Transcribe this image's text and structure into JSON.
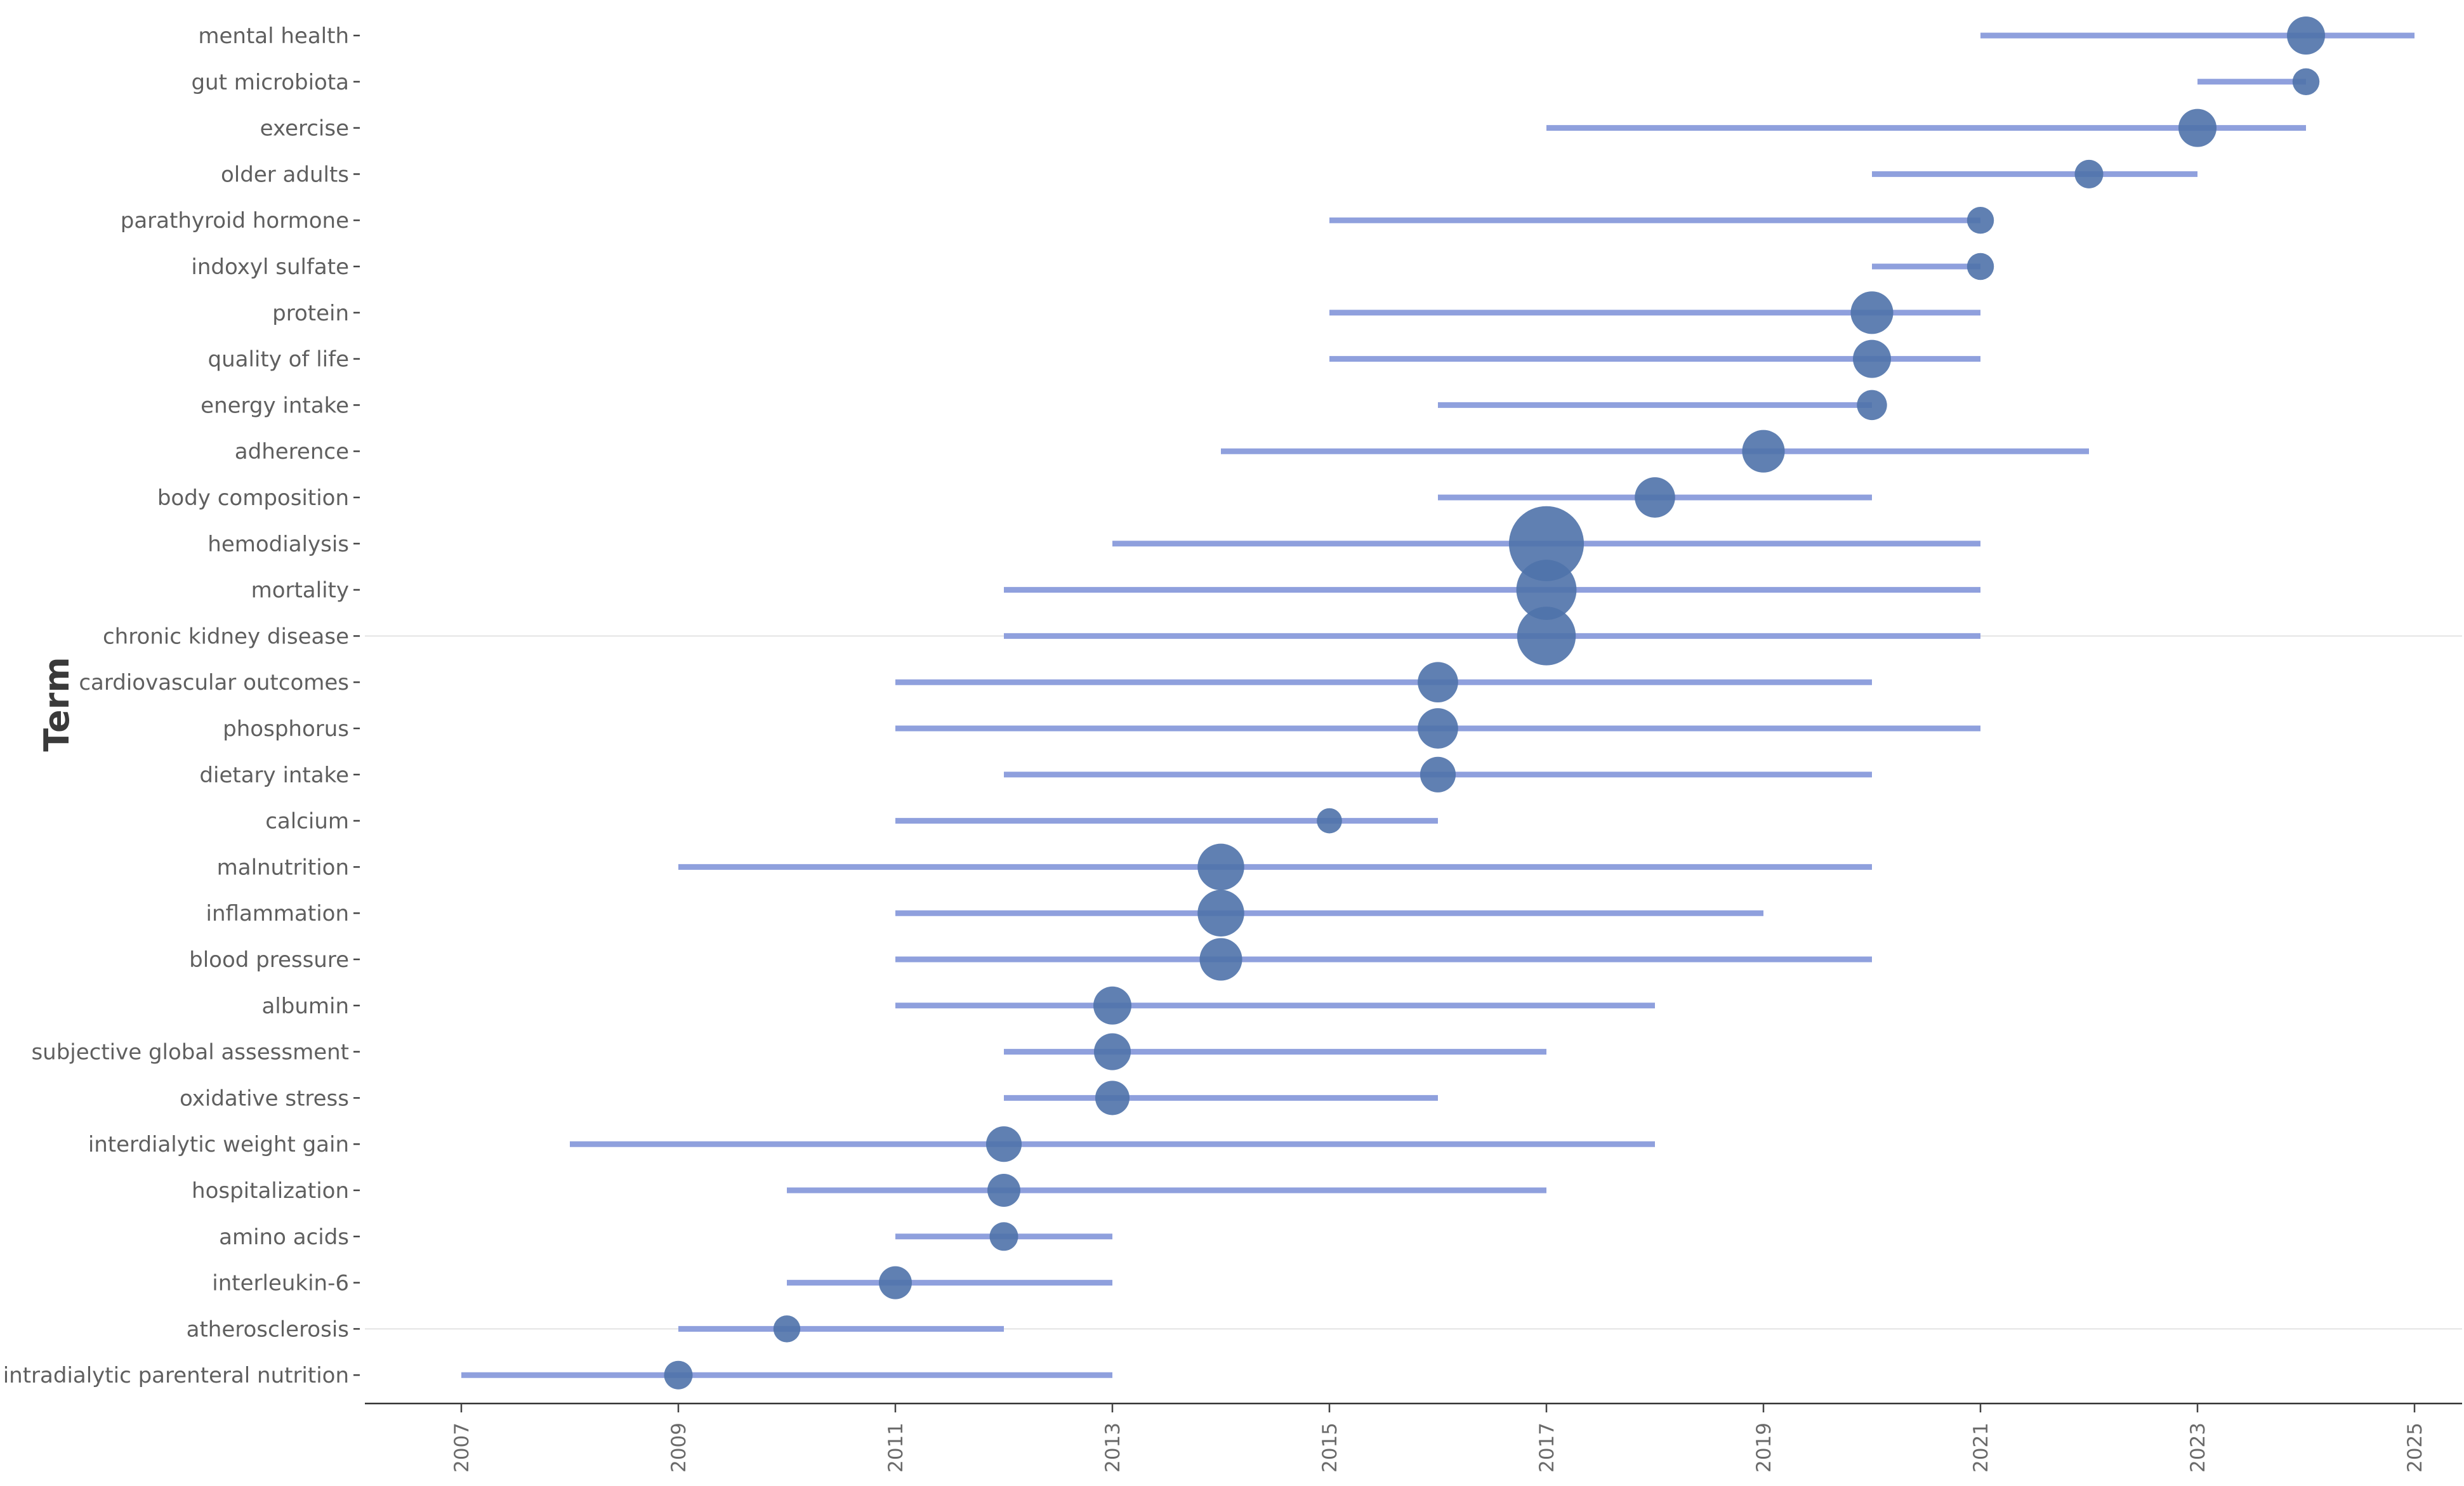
{
  "chart_data": {
    "type": "scatter",
    "ylabel": "Term",
    "xlabel": "",
    "xlim": [
      2006.1,
      2025.5
    ],
    "x_ticks": [
      2007,
      2009,
      2011,
      2013,
      2015,
      2017,
      2019,
      2021,
      2023,
      2025
    ],
    "x_tick_labels": [
      "2007",
      "2009",
      "2011",
      "2013",
      "2015",
      "2017",
      "2019",
      "2021",
      "2023",
      "2025"
    ],
    "line_color": "#8fa0dd",
    "point_color": "#4f72aa",
    "terms": [
      {
        "term": "mental health",
        "start": 2021,
        "end": 2025,
        "median": 2024,
        "freq": 16
      },
      {
        "term": "gut microbiota",
        "start": 2023,
        "end": 2024,
        "median": 2024,
        "freq": 8
      },
      {
        "term": "exercise",
        "start": 2017,
        "end": 2024,
        "median": 2023,
        "freq": 16
      },
      {
        "term": "older adults",
        "start": 2020,
        "end": 2023,
        "median": 2022,
        "freq": 9
      },
      {
        "term": "parathyroid hormone",
        "start": 2015,
        "end": 2021,
        "median": 2021,
        "freq": 8
      },
      {
        "term": "indoxyl sulfate",
        "start": 2020,
        "end": 2021,
        "median": 2021,
        "freq": 8
      },
      {
        "term": "protein",
        "start": 2015,
        "end": 2021,
        "median": 2020,
        "freq": 20
      },
      {
        "term": "quality of life",
        "start": 2015,
        "end": 2021,
        "median": 2020,
        "freq": 16
      },
      {
        "term": "energy intake",
        "start": 2016,
        "end": 2020,
        "median": 2020,
        "freq": 10
      },
      {
        "term": "adherence",
        "start": 2014,
        "end": 2022,
        "median": 2019,
        "freq": 20
      },
      {
        "term": "body composition",
        "start": 2016,
        "end": 2020,
        "median": 2018,
        "freq": 18
      },
      {
        "term": "hemodialysis",
        "start": 2013,
        "end": 2021,
        "median": 2017,
        "freq": 62
      },
      {
        "term": "mortality",
        "start": 2012,
        "end": 2021,
        "median": 2017,
        "freq": 40
      },
      {
        "term": "chronic kidney disease",
        "start": 2012,
        "end": 2021,
        "median": 2017,
        "freq": 38
      },
      {
        "term": "cardiovascular outcomes",
        "start": 2011,
        "end": 2020,
        "median": 2016,
        "freq": 18
      },
      {
        "term": "phosphorus",
        "start": 2011,
        "end": 2021,
        "median": 2016,
        "freq": 18
      },
      {
        "term": "dietary intake",
        "start": 2012,
        "end": 2020,
        "median": 2016,
        "freq": 14
      },
      {
        "term": "calcium",
        "start": 2011,
        "end": 2016,
        "median": 2015,
        "freq": 7
      },
      {
        "term": "malnutrition",
        "start": 2009,
        "end": 2020,
        "median": 2014,
        "freq": 24
      },
      {
        "term": "inflammation",
        "start": 2011,
        "end": 2019,
        "median": 2014,
        "freq": 24
      },
      {
        "term": "blood pressure",
        "start": 2011,
        "end": 2020,
        "median": 2014,
        "freq": 20
      },
      {
        "term": "albumin",
        "start": 2011,
        "end": 2018,
        "median": 2013,
        "freq": 16
      },
      {
        "term": "subjective global assessment",
        "start": 2012,
        "end": 2017,
        "median": 2013,
        "freq": 15
      },
      {
        "term": "oxidative stress",
        "start": 2012,
        "end": 2016,
        "median": 2013,
        "freq": 13
      },
      {
        "term": "interdialytic weight gain",
        "start": 2008,
        "end": 2018,
        "median": 2012,
        "freq": 14
      },
      {
        "term": "hospitalization",
        "start": 2010,
        "end": 2017,
        "median": 2012,
        "freq": 12
      },
      {
        "term": "amino acids",
        "start": 2011,
        "end": 2013,
        "median": 2012,
        "freq": 9
      },
      {
        "term": "interleukin-6",
        "start": 2010,
        "end": 2013,
        "median": 2011,
        "freq": 12
      },
      {
        "term": "atherosclerosis",
        "start": 2009,
        "end": 2012,
        "median": 2010,
        "freq": 8
      },
      {
        "term": "intradialytic parenteral nutrition",
        "start": 2007,
        "end": 2013,
        "median": 2009,
        "freq": 9
      }
    ],
    "grid": false
  }
}
